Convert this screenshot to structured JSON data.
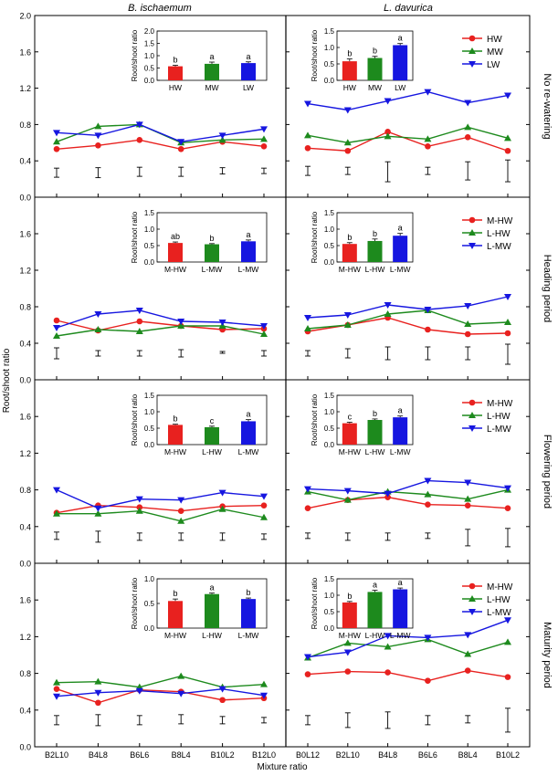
{
  "figure": {
    "col_titles": [
      "B. ischaemum",
      "L. davurica"
    ],
    "ylabel": "Root/shoot ratio",
    "xlabel": "Mixture ratio",
    "row_labels": [
      "No re-watering",
      "Heading period",
      "Flowering period",
      "Maturity period"
    ],
    "yticks": [
      "0.0",
      "0.4",
      "0.8",
      "1.2",
      "1.6",
      "2.0"
    ]
  },
  "colors": {
    "red": "#e8211f",
    "green": "#1d8a1d",
    "blue": "#1616e0"
  },
  "chart_data": [
    {
      "type": "line",
      "column": "B. ischaemum",
      "row": "No re-watering",
      "ylim": [
        0,
        2.0
      ],
      "categories": [
        "B2L10",
        "B4L8",
        "B6L6",
        "B8L4",
        "B10L2",
        "B12L0"
      ],
      "series": [
        {
          "name": "HW",
          "color": "red",
          "values": [
            0.53,
            0.57,
            0.63,
            0.53,
            0.61,
            0.56
          ]
        },
        {
          "name": "MW",
          "color": "green",
          "values": [
            0.61,
            0.78,
            0.8,
            0.6,
            0.63,
            0.64
          ]
        },
        {
          "name": "LW",
          "color": "blue",
          "values": [
            0.71,
            0.68,
            0.8,
            0.61,
            0.68,
            0.75
          ]
        }
      ],
      "errorbars": [
        {
          "y": 0.27,
          "h": 0.05
        },
        {
          "y": 0.27,
          "h": 0.055
        },
        {
          "y": 0.28,
          "h": 0.05
        },
        {
          "y": 0.28,
          "h": 0.05
        },
        {
          "y": 0.29,
          "h": 0.035
        },
        {
          "y": 0.29,
          "h": 0.03
        }
      ],
      "inset": {
        "ylabel": "Root/shoot ratio",
        "ylim": [
          0,
          2.0
        ],
        "yticks": [
          "0.0",
          "0.5",
          "1.0",
          "1.5",
          "2.0"
        ],
        "categories": [
          "HW",
          "MW",
          "LW"
        ],
        "values": [
          0.57,
          0.67,
          0.7
        ],
        "errors": [
          0.04,
          0.07,
          0.05
        ],
        "letters": [
          "b",
          "a",
          "a"
        ]
      }
    },
    {
      "type": "line",
      "column": "L. davurica",
      "row": "No re-watering",
      "ylim": [
        0,
        2.0
      ],
      "categories": [
        "B0L12",
        "B2L10",
        "B4L8",
        "B6L6",
        "B8L4",
        "B10L2"
      ],
      "series": [
        {
          "name": "HW",
          "color": "red",
          "values": [
            0.54,
            0.51,
            0.72,
            0.56,
            0.66,
            0.51
          ]
        },
        {
          "name": "MW",
          "color": "green",
          "values": [
            0.68,
            0.6,
            0.67,
            0.64,
            0.77,
            0.65
          ]
        },
        {
          "name": "LW",
          "color": "blue",
          "values": [
            1.03,
            0.96,
            1.06,
            1.16,
            1.04,
            1.12
          ]
        }
      ],
      "errorbars": [
        {
          "y": 0.29,
          "h": 0.05
        },
        {
          "y": 0.29,
          "h": 0.04
        },
        {
          "y": 0.28,
          "h": 0.11
        },
        {
          "y": 0.29,
          "h": 0.04
        },
        {
          "y": 0.29,
          "h": 0.1
        },
        {
          "y": 0.29,
          "h": 0.12
        }
      ],
      "inset": {
        "ylabel": "Root/shoot ratio",
        "ylim": [
          0,
          1.5
        ],
        "yticks": [
          "0.0",
          "0.5",
          "1.0",
          "1.5"
        ],
        "categories": [
          "HW",
          "MW",
          "LW"
        ],
        "values": [
          0.58,
          0.68,
          1.07
        ],
        "errors": [
          0.07,
          0.05,
          0.05
        ],
        "letters": [
          "b",
          "b",
          "a"
        ]
      }
    },
    {
      "type": "line",
      "column": "B. ischaemum",
      "row": "Heading period",
      "ylim": [
        0,
        2.0
      ],
      "categories": [
        "B2L10",
        "B4L8",
        "B6L6",
        "B8L4",
        "B10L2",
        "B12L0"
      ],
      "series": [
        {
          "name": "M-HW",
          "color": "red",
          "values": [
            0.65,
            0.54,
            0.64,
            0.59,
            0.55,
            0.56
          ]
        },
        {
          "name": "L-MW",
          "color": "green",
          "values": [
            0.48,
            0.55,
            0.53,
            0.59,
            0.59,
            0.5
          ]
        },
        {
          "name": "L-MW",
          "color": "blue",
          "values": [
            0.57,
            0.72,
            0.76,
            0.64,
            0.63,
            0.59
          ]
        }
      ],
      "errorbars": [
        {
          "y": 0.29,
          "h": 0.06
        },
        {
          "y": 0.29,
          "h": 0.03
        },
        {
          "y": 0.29,
          "h": 0.03
        },
        {
          "y": 0.29,
          "h": 0.04
        },
        {
          "y": 0.3,
          "h": 0.01
        },
        {
          "y": 0.29,
          "h": 0.03
        }
      ],
      "inset": {
        "ylabel": "Root/shoot ratio",
        "ylim": [
          0,
          1.5
        ],
        "yticks": [
          "0.0",
          "0.5",
          "1.0",
          "1.5"
        ],
        "categories": [
          "M-HW",
          "L-MW",
          "L-MW"
        ],
        "values": [
          0.58,
          0.54,
          0.63
        ],
        "errors": [
          0.03,
          0.02,
          0.04
        ],
        "letters": [
          "ab",
          "b",
          "a"
        ]
      }
    },
    {
      "type": "line",
      "column": "L. davurica",
      "row": "Heading period",
      "ylim": [
        0,
        2.0
      ],
      "categories": [
        "B0L12",
        "B2L10",
        "B4L8",
        "B6L6",
        "B8L4",
        "B10L2"
      ],
      "series": [
        {
          "name": "M-HW",
          "color": "red",
          "values": [
            0.53,
            0.6,
            0.68,
            0.55,
            0.5,
            0.51
          ]
        },
        {
          "name": "L-HW",
          "color": "green",
          "values": [
            0.56,
            0.6,
            0.72,
            0.76,
            0.61,
            0.63
          ]
        },
        {
          "name": "L-MW",
          "color": "blue",
          "values": [
            0.68,
            0.71,
            0.82,
            0.77,
            0.81,
            0.91
          ]
        }
      ],
      "errorbars": [
        {
          "y": 0.29,
          "h": 0.03
        },
        {
          "y": 0.29,
          "h": 0.05
        },
        {
          "y": 0.29,
          "h": 0.07
        },
        {
          "y": 0.29,
          "h": 0.07
        },
        {
          "y": 0.29,
          "h": 0.07
        },
        {
          "y": 0.28,
          "h": 0.11
        }
      ],
      "inset": {
        "ylabel": "Root/shoot ratio",
        "ylim": [
          0,
          1.5
        ],
        "yticks": [
          "0.0",
          "0.5",
          "1.0",
          "1.5"
        ],
        "categories": [
          "M-HW",
          "L-HW",
          "L-MW"
        ],
        "values": [
          0.55,
          0.64,
          0.8
        ],
        "errors": [
          0.04,
          0.06,
          0.07
        ],
        "letters": [
          "b",
          "b",
          "a"
        ]
      }
    },
    {
      "type": "line",
      "column": "B. ischaemum",
      "row": "Flowering period",
      "ylim": [
        0,
        2.0
      ],
      "categories": [
        "B2L10",
        "B4L8",
        "B6L6",
        "B8L4",
        "B10L2",
        "B12L0"
      ],
      "series": [
        {
          "name": "M-HW",
          "color": "red",
          "values": [
            0.55,
            0.63,
            0.61,
            0.57,
            0.62,
            0.63
          ]
        },
        {
          "name": "L-HW",
          "color": "green",
          "values": [
            0.54,
            0.54,
            0.57,
            0.46,
            0.59,
            0.5
          ]
        },
        {
          "name": "L-MW",
          "color": "blue",
          "values": [
            0.8,
            0.6,
            0.7,
            0.69,
            0.77,
            0.73
          ]
        }
      ],
      "errorbars": [
        {
          "y": 0.3,
          "h": 0.04
        },
        {
          "y": 0.29,
          "h": 0.06
        },
        {
          "y": 0.29,
          "h": 0.04
        },
        {
          "y": 0.29,
          "h": 0.04
        },
        {
          "y": 0.29,
          "h": 0.04
        },
        {
          "y": 0.29,
          "h": 0.03
        }
      ],
      "inset": {
        "ylabel": "Root/shoot ratio",
        "ylim": [
          0,
          1.5
        ],
        "yticks": [
          "0.0",
          "0.5",
          "1.0",
          "1.5"
        ],
        "categories": [
          "M-HW",
          "L-HW",
          "L-MW"
        ],
        "values": [
          0.6,
          0.53,
          0.71
        ],
        "errors": [
          0.02,
          0.03,
          0.05
        ],
        "letters": [
          "b",
          "c",
          "a"
        ]
      }
    },
    {
      "type": "line",
      "column": "L. davurica",
      "row": "Flowering period",
      "ylim": [
        0,
        2.0
      ],
      "categories": [
        "B0L12",
        "B2L10",
        "B4L8",
        "B6L6",
        "B8L4",
        "B10L2"
      ],
      "series": [
        {
          "name": "M-HW",
          "color": "red",
          "values": [
            0.6,
            0.69,
            0.72,
            0.64,
            0.63,
            0.6
          ]
        },
        {
          "name": "L-HW",
          "color": "green",
          "values": [
            0.78,
            0.69,
            0.78,
            0.75,
            0.7,
            0.8
          ]
        },
        {
          "name": "L-MW",
          "color": "blue",
          "values": [
            0.81,
            0.79,
            0.76,
            0.9,
            0.88,
            0.82
          ]
        }
      ],
      "errorbars": [
        {
          "y": 0.3,
          "h": 0.03
        },
        {
          "y": 0.29,
          "h": 0.04
        },
        {
          "y": 0.29,
          "h": 0.04
        },
        {
          "y": 0.3,
          "h": 0.03
        },
        {
          "y": 0.28,
          "h": 0.09
        },
        {
          "y": 0.28,
          "h": 0.1
        }
      ],
      "inset": {
        "ylabel": "Root/shoot ratio",
        "ylim": [
          0,
          1.5
        ],
        "yticks": [
          "0.0",
          "0.5",
          "1.0",
          "1.5"
        ],
        "categories": [
          "M-HW",
          "L-HW",
          "L-MW"
        ],
        "values": [
          0.65,
          0.75,
          0.83
        ],
        "errors": [
          0.03,
          0.03,
          0.04
        ],
        "letters": [
          "c",
          "b",
          "a"
        ]
      }
    },
    {
      "type": "line",
      "column": "B. ischaemum",
      "row": "Maturity period",
      "ylim": [
        0,
        2.0
      ],
      "categories": [
        "B2L10",
        "B4L8",
        "B6L6",
        "B8L4",
        "B10L2",
        "B12L0"
      ],
      "series": [
        {
          "name": "M-HW",
          "color": "red",
          "values": [
            0.63,
            0.48,
            0.62,
            0.6,
            0.51,
            0.53
          ]
        },
        {
          "name": "L-HW",
          "color": "green",
          "values": [
            0.7,
            0.71,
            0.65,
            0.77,
            0.65,
            0.68
          ]
        },
        {
          "name": "L-MW",
          "color": "blue",
          "values": [
            0.55,
            0.59,
            0.61,
            0.58,
            0.63,
            0.56
          ]
        }
      ],
      "errorbars": [
        {
          "y": 0.29,
          "h": 0.05
        },
        {
          "y": 0.29,
          "h": 0.06
        },
        {
          "y": 0.29,
          "h": 0.05
        },
        {
          "y": 0.3,
          "h": 0.05
        },
        {
          "y": 0.29,
          "h": 0.04
        },
        {
          "y": 0.29,
          "h": 0.03
        }
      ],
      "inset": {
        "ylabel": "Root/shoot ratio",
        "ylim": [
          0,
          1.0
        ],
        "yticks": [
          "0.0",
          "0.5",
          "1.0"
        ],
        "categories": [
          "M-HW",
          "L-HW",
          "L-MW"
        ],
        "values": [
          0.55,
          0.69,
          0.59
        ],
        "errors": [
          0.04,
          0.02,
          0.02
        ],
        "letters": [
          "b",
          "a",
          "b"
        ]
      }
    },
    {
      "type": "line",
      "column": "L. davurica",
      "row": "Maturity period",
      "ylim": [
        0,
        2.0
      ],
      "categories": [
        "B0L12",
        "B2L10",
        "B4L8",
        "B6L6",
        "B8L4",
        "B10L2"
      ],
      "series": [
        {
          "name": "M-HW",
          "color": "red",
          "values": [
            0.79,
            0.82,
            0.81,
            0.72,
            0.83,
            0.76
          ]
        },
        {
          "name": "L-HW",
          "color": "green",
          "values": [
            0.97,
            1.13,
            1.09,
            1.17,
            1.01,
            1.14
          ]
        },
        {
          "name": "L-MW",
          "color": "blue",
          "values": [
            0.98,
            1.03,
            1.21,
            1.19,
            1.22,
            1.38
          ]
        }
      ],
      "errorbars": [
        {
          "y": 0.29,
          "h": 0.05
        },
        {
          "y": 0.29,
          "h": 0.08
        },
        {
          "y": 0.29,
          "h": 0.09
        },
        {
          "y": 0.29,
          "h": 0.05
        },
        {
          "y": 0.3,
          "h": 0.04
        },
        {
          "y": 0.29,
          "h": 0.13
        }
      ],
      "inset": {
        "ylabel": "Root/shoot ratio",
        "ylim": [
          0,
          1.5
        ],
        "yticks": [
          "0.0",
          "0.5",
          "1.0",
          "1.5"
        ],
        "categories": [
          "M-HW",
          "L-HW",
          "L-MW"
        ],
        "values": [
          0.78,
          1.1,
          1.18
        ],
        "errors": [
          0.03,
          0.05,
          0.04
        ],
        "letters": [
          "b",
          "a",
          "a"
        ]
      }
    }
  ]
}
